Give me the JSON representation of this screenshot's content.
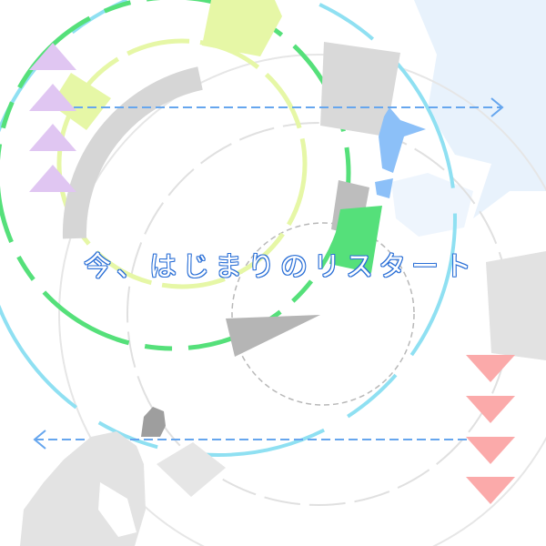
{
  "caption": "今、はじまりのリスタート",
  "colors": {
    "background": "#ffffff",
    "green": "#55e07a",
    "yellow_green": "#e6f7a6",
    "cyan": "#8fe0f2",
    "gray": "#d6d6d6",
    "dark_gray": "#b5b5b5",
    "arrow_blue": "#66a6ee",
    "lavender": "#e0c6f2",
    "salmon": "#fbaaaa",
    "ice_blue": "#e8f2fc",
    "character_blue": "#8cc0f8",
    "caption_outline": "#2a6fd6"
  },
  "decorations": {
    "left_triangles": 4,
    "right_triangles": 4,
    "top_arrow": "right",
    "bottom_arrow": "left"
  }
}
